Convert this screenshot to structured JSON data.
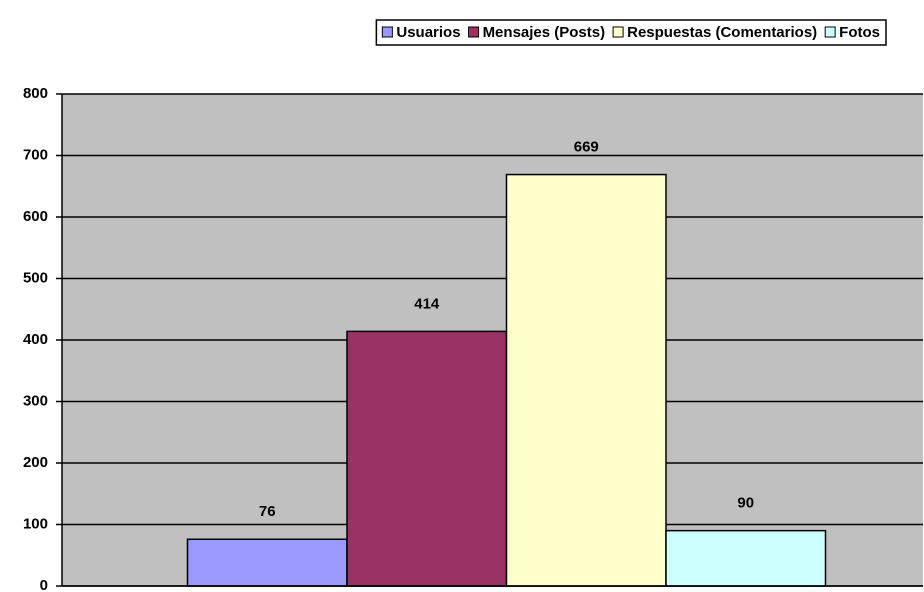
{
  "chart_data": {
    "type": "bar",
    "categories": [
      null
    ],
    "series": [
      {
        "name": "Usuarios",
        "color": "#9999ff",
        "values": [
          76
        ]
      },
      {
        "name": "Mensajes (Posts)",
        "color": "#993366",
        "values": [
          414
        ]
      },
      {
        "name": "Respuestas (Comentarios)",
        "color": "#ffffcc",
        "values": [
          669
        ]
      },
      {
        "name": "Fotos",
        "color": "#ccffff",
        "values": [
          90
        ]
      }
    ],
    "ylim": [
      0,
      800
    ],
    "yticks": [
      0,
      100,
      200,
      300,
      400,
      500,
      600,
      700,
      800
    ],
    "grid": true,
    "legend": "top"
  }
}
